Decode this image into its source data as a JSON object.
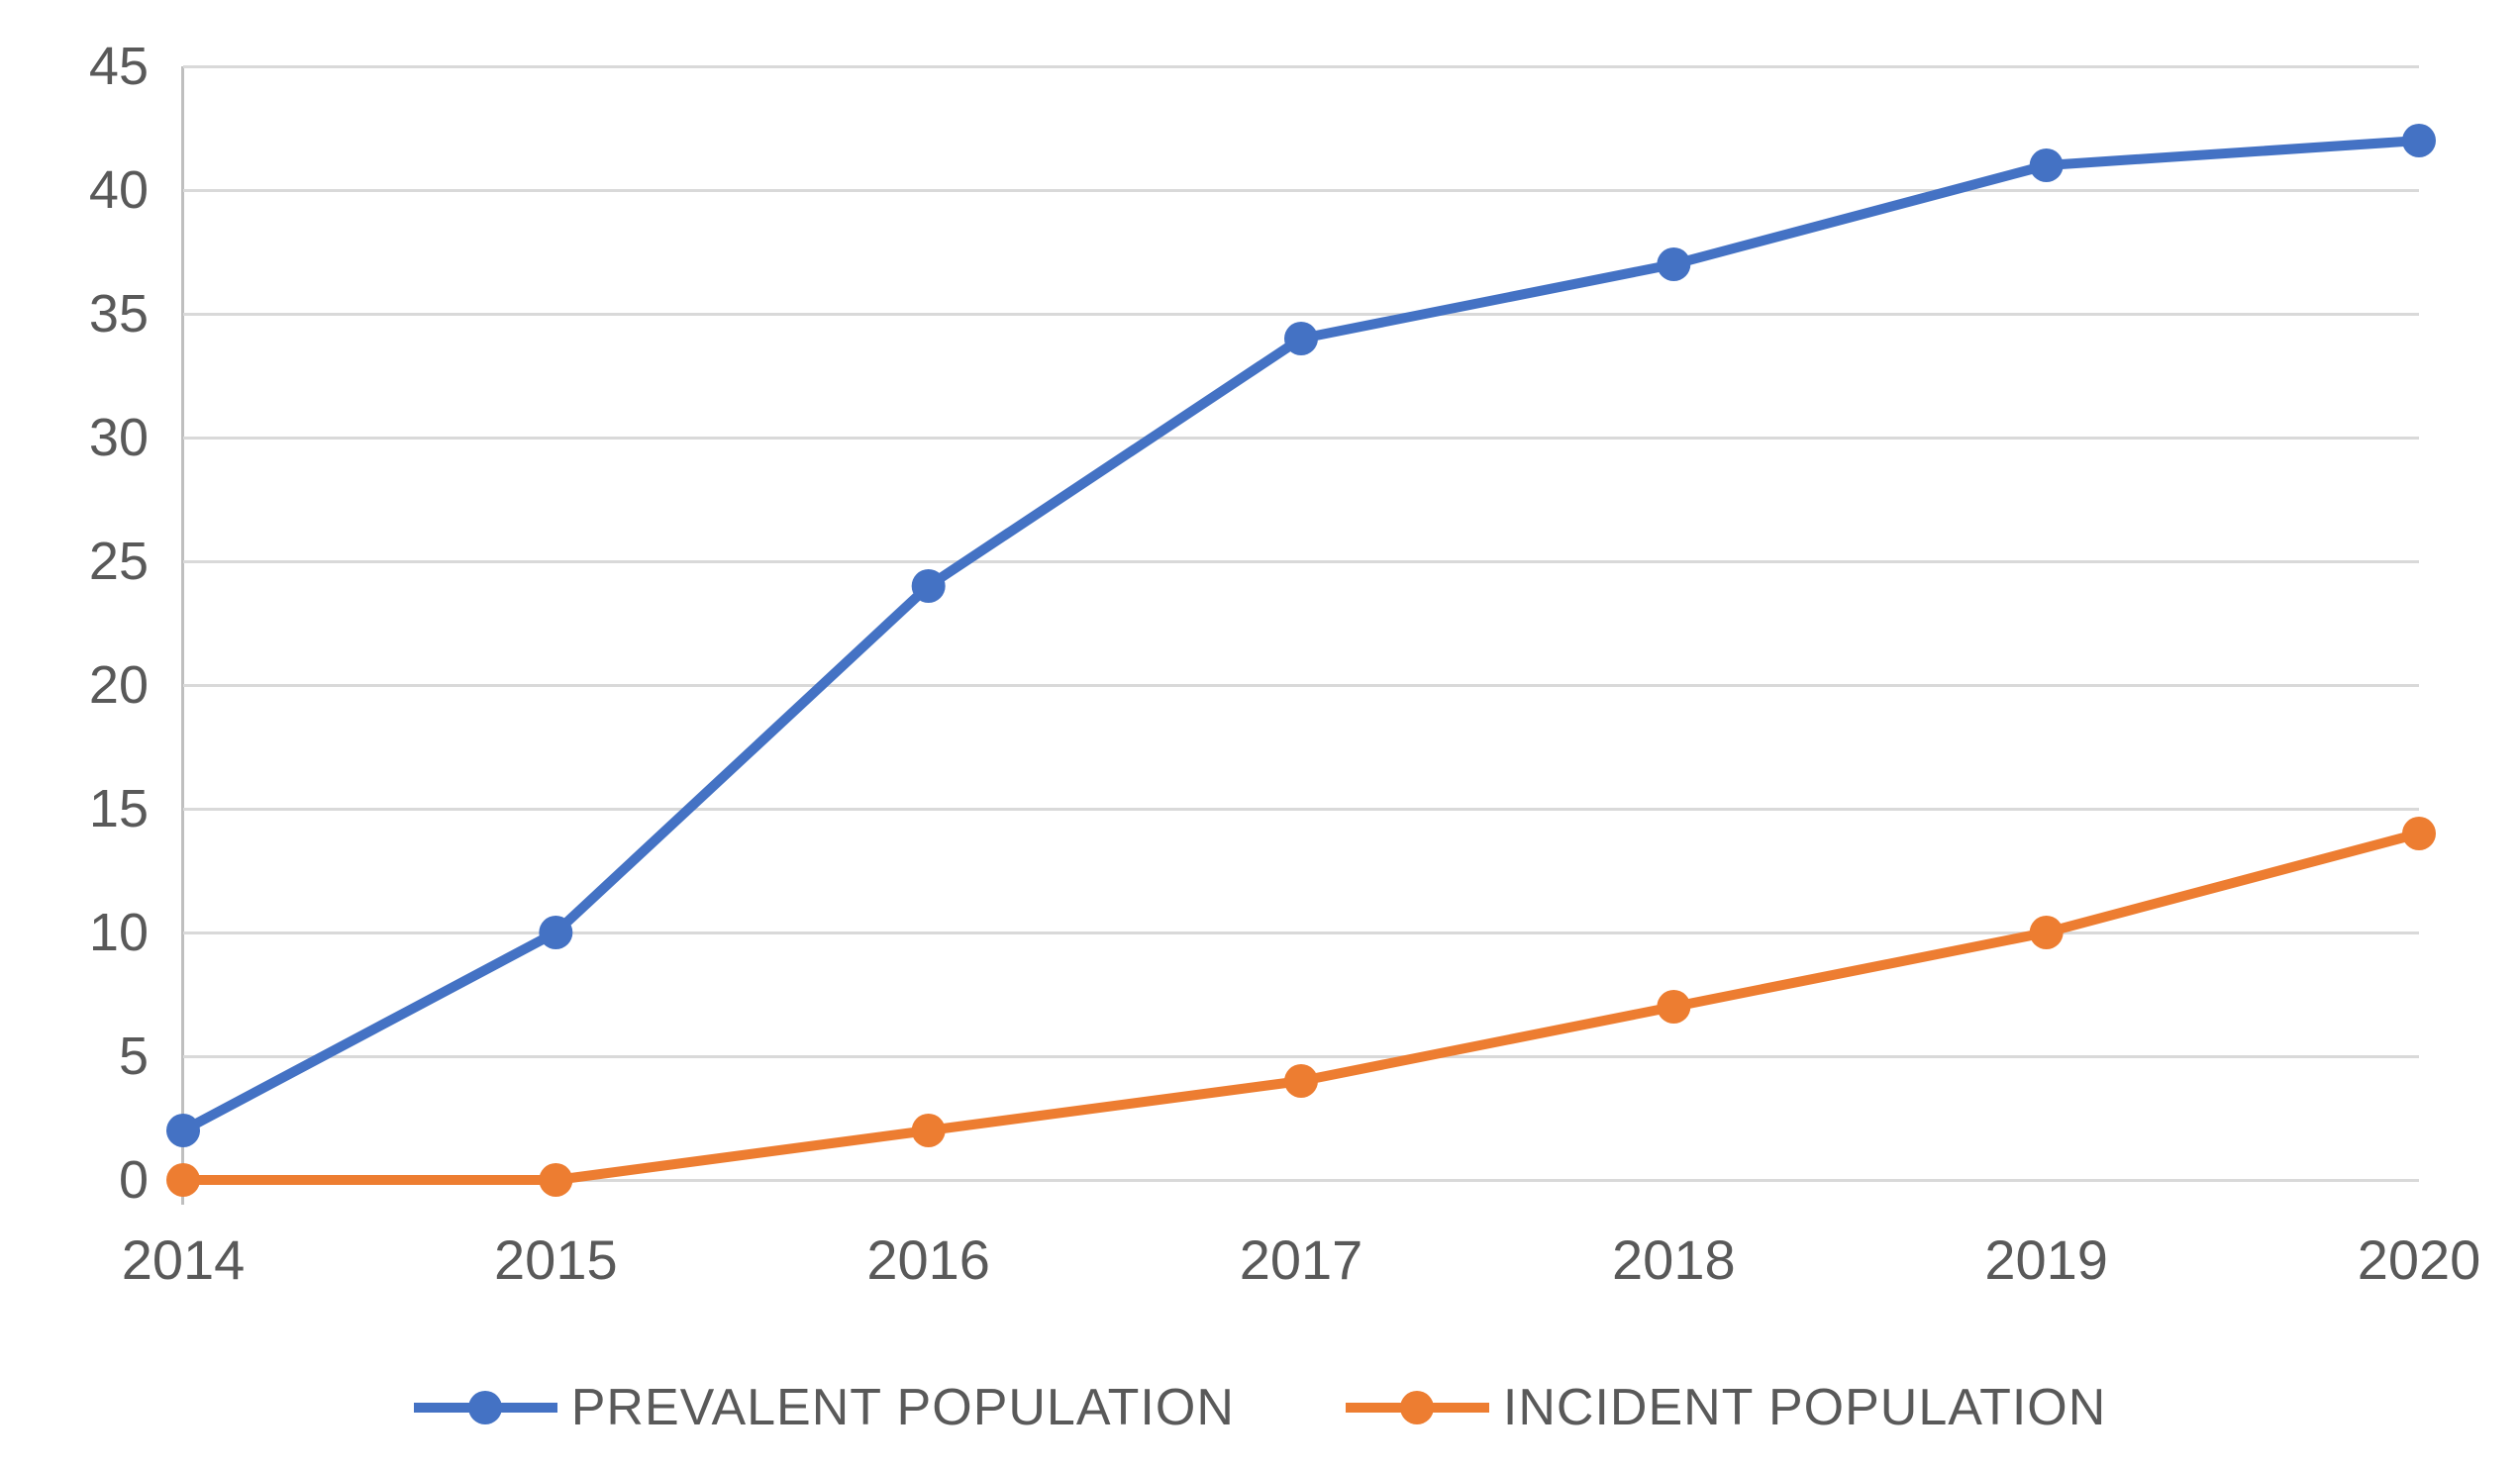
{
  "chart_data": {
    "type": "line",
    "title": "",
    "categories": [
      "2014",
      "2015",
      "2016",
      "2017",
      "2018",
      "2019",
      "2020"
    ],
    "series": [
      {
        "name": "PREVALENT POPULATION",
        "color": "#4472C4",
        "values": [
          2,
          10,
          24,
          34,
          37,
          41,
          42
        ]
      },
      {
        "name": "INCIDENT POPULATION",
        "color": "#ED7D31",
        "values": [
          0,
          0,
          2,
          4,
          7,
          10,
          14
        ]
      }
    ],
    "y_axis": {
      "min": 0,
      "max": 45,
      "step": 5,
      "tick_labels": [
        "0",
        "5",
        "10",
        "15",
        "20",
        "25",
        "30",
        "35",
        "40",
        "45"
      ]
    },
    "x_axis": {
      "tick_labels": [
        "2014",
        "2015",
        "2016",
        "2017",
        "2018",
        "2019",
        "2020"
      ]
    },
    "grid": true,
    "legend_position": "bottom",
    "marker": "circle",
    "style": {
      "gridline_color": "#D9D9D9",
      "axis_line_color": "#BFBFBF",
      "tick_label_color": "#595959",
      "background_color": "#FFFFFF",
      "line_width": 10,
      "marker_radius": 17
    }
  }
}
